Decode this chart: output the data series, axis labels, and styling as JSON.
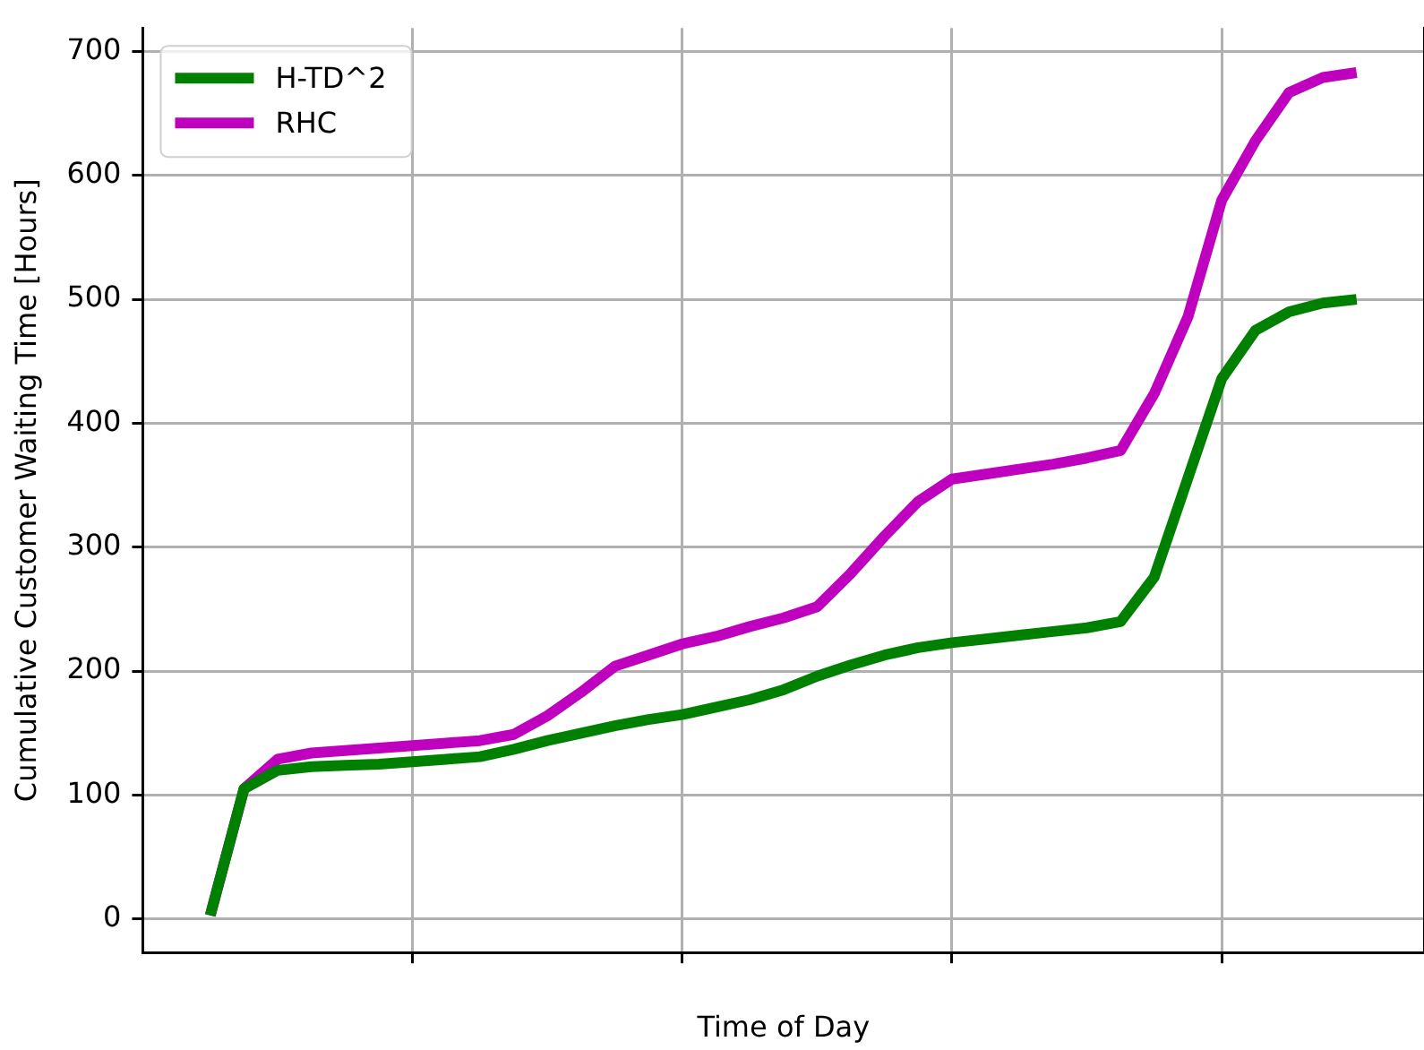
{
  "chart_data": {
    "type": "line",
    "xlabel": "Time of Day",
    "ylabel": "Cumulative Customer Waiting Time [Hours]",
    "categories": [
      null,
      null,
      null,
      null,
      null,
      null,
      null,
      null,
      null,
      null,
      null,
      null,
      null,
      null,
      null,
      null,
      null,
      null,
      null,
      null,
      null,
      null,
      null,
      null,
      null,
      null,
      null,
      null,
      null,
      null,
      null,
      null,
      null,
      null,
      null,
      null,
      null,
      null,
      null
    ],
    "ylim": [
      -27,
      719
    ],
    "yticks": [
      0,
      100,
      200,
      300,
      400,
      500,
      600,
      700
    ],
    "grid": true,
    "legend": "top left",
    "line_style": "solid",
    "marker": "none",
    "tick_labels": "y",
    "series": [
      {
        "name": "H-TD^2",
        "color": "#008000",
        "values": [
          null,
          null,
          3,
          105,
          120,
          123,
          124,
          125,
          127,
          129,
          131,
          137,
          144,
          150,
          156,
          161,
          165,
          171,
          177,
          185,
          196,
          205,
          213,
          219,
          223,
          226,
          229,
          232,
          235,
          240,
          276,
          356,
          436,
          475,
          490,
          497,
          500,
          null,
          null
        ]
      },
      {
        "name": "RHC",
        "color": "#bf00bf",
        "values": [
          null,
          null,
          3,
          105,
          129,
          134,
          136,
          138,
          140,
          142,
          144,
          149,
          164,
          183,
          204,
          213,
          222,
          228,
          236,
          243,
          252,
          279,
          309,
          337,
          355,
          359,
          363,
          367,
          372,
          378,
          424,
          486,
          580,
          628,
          667,
          679,
          683,
          null,
          null
        ]
      }
    ]
  }
}
